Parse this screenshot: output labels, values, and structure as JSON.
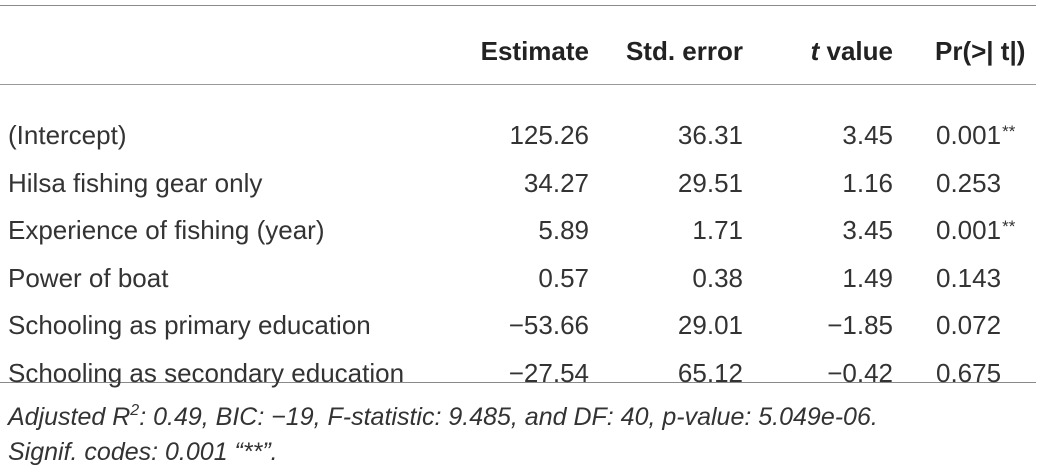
{
  "table": {
    "headers": {
      "label": "",
      "estimate": "Estimate",
      "std_error": "Std. error",
      "t_value_t": "t",
      "t_value_rest": " value",
      "pr": "Pr(>| t|)"
    },
    "rows": [
      {
        "label": "(Intercept)",
        "estimate": "125.26",
        "std_error": "36.31",
        "t_value": "3.45",
        "pr": "0.001",
        "sig": "**"
      },
      {
        "label": "Hilsa fishing gear only",
        "estimate": "34.27",
        "std_error": "29.51",
        "t_value": "1.16",
        "pr": "0.253",
        "sig": ""
      },
      {
        "label": "Experience of fishing (year)",
        "estimate": "5.89",
        "std_error": "1.71",
        "t_value": "3.45",
        "pr": "0.001",
        "sig": "**"
      },
      {
        "label": "Power of boat",
        "estimate": "0.57",
        "std_error": "0.38",
        "t_value": "1.49",
        "pr": "0.143",
        "sig": ""
      },
      {
        "label": "Schooling as primary education",
        "estimate": "−53.66",
        "std_error": "29.01",
        "t_value": "−1.85",
        "pr": "0.072",
        "sig": ""
      },
      {
        "label": "Schooling as secondary education",
        "estimate": "−27.54",
        "std_error": "65.12",
        "t_value": "−0.42",
        "pr": "0.675",
        "sig": ""
      }
    ]
  },
  "footnote": {
    "r2_prefix": "Adjusted R",
    "r2_sup": "2",
    "line1_rest": ": 0.49, BIC: −19, F-statistic: 9.485, and DF: 40, p-value: 5.049e-06.",
    "line2": "Signif. codes: 0.001 “**”."
  }
}
